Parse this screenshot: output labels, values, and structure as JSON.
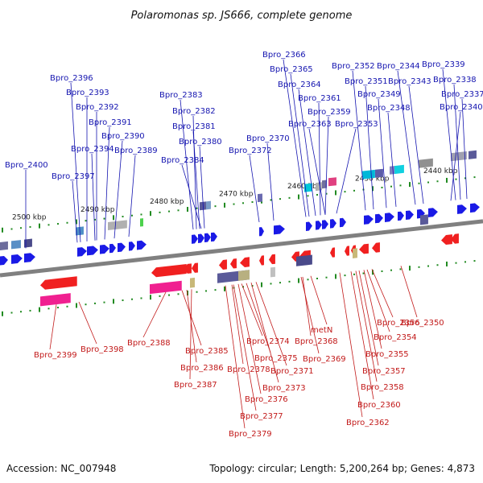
{
  "title": "Polaromonas sp. JS666, complete genome",
  "footer": {
    "accession": "Accession: NC_007948",
    "summary": "Topology: circular; Length: 5,200,264 bp; Genes: 4,873"
  },
  "colors": {
    "forward": "#1a1ae6",
    "reverse": "#f02020",
    "forward_label": "#1515b0",
    "reverse_label": "#c21a1a",
    "backbone": "#808080",
    "tick": "#228b22"
  },
  "scale_labels": [
    "2500 kbp",
    "2490 kbp",
    "2480 kbp",
    "2470 kbp",
    "2460 kbp",
    "2450 kbp",
    "2440 kbp"
  ],
  "forward_labels": [
    "Bpro_2400",
    "Bpro_2397",
    "Bpro_2396",
    "Bpro_2393",
    "Bpro_2394",
    "Bpro_2392",
    "Bpro_2391",
    "Bpro_2390",
    "Bpro_2389",
    "Bpro_2383",
    "Bpro_2382",
    "Bpro_2381",
    "Bpro_2380",
    "Bpro_2384",
    "Bpro_2372",
    "Bpro_2370",
    "Bpro_2366",
    "Bpro_2365",
    "Bpro_2364",
    "Bpro_2361",
    "Bpro_2359",
    "Bpro_2363",
    "Bpro_2353",
    "Bpro_2352",
    "Bpro_2351",
    "Bpro_2349",
    "Bpro_2348",
    "Bpro_2344",
    "Bpro_2343",
    "Bpro_2339",
    "Bpro_2338",
    "Bpro_2337",
    "Bpro_2340"
  ],
  "reverse_labels": [
    "Bpro_2399",
    "Bpro_2398",
    "Bpro_2388",
    "Bpro_2385",
    "Bpro_2386",
    "Bpro_2387",
    "Bpro_2374",
    "Bpro_2375",
    "Bpro_2378",
    "Bpro_2371",
    "Bpro_2376",
    "Bpro_2373",
    "Bpro_2377",
    "Bpro_2379",
    "metN",
    "Bpro_2368",
    "Bpro_2369",
    "Bpro_2356",
    "Bpro_2354",
    "Bpro_2355",
    "Bpro_2357",
    "Bpro_2358",
    "Bpro_2360",
    "Bpro_2362",
    "Bpro_2350"
  ]
}
